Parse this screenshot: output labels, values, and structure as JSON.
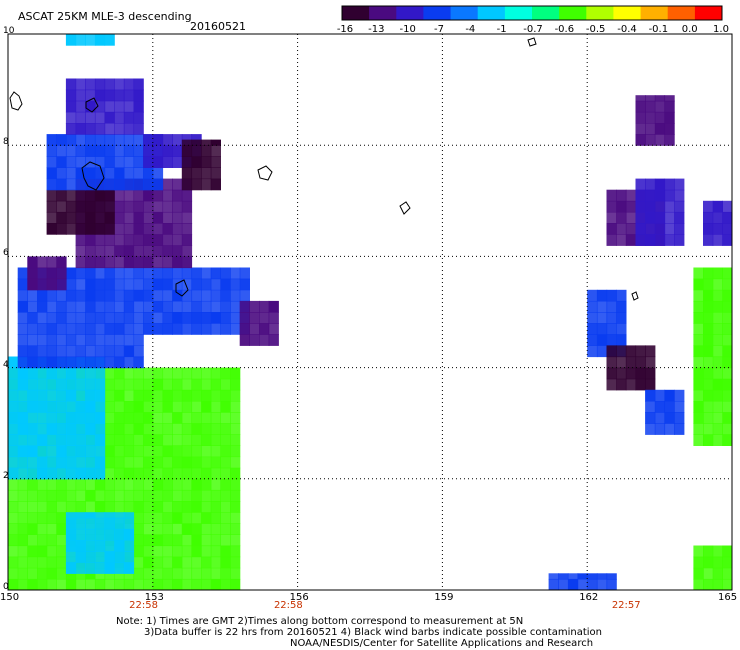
{
  "header": {
    "title": "ASCAT 25KM MLE-3 descending",
    "date": "20160521"
  },
  "colorbar": {
    "labels": [
      "-16",
      "-13",
      "-10",
      "-7",
      "-4",
      "-1",
      "-0.7",
      "-0.6",
      "-0.5",
      "-0.4",
      "-0.1",
      "0.0",
      "1.0"
    ],
    "colors": [
      "#300030",
      "#4a0a80",
      "#3218c8",
      "#0a3cf0",
      "#0a78ff",
      "#00c8ff",
      "#00ffe0",
      "#00ff80",
      "#40ff00",
      "#b0ff00",
      "#ffff00",
      "#ffb000",
      "#ff6000",
      "#ff0000"
    ]
  },
  "axes": {
    "x_ticks": [
      "150",
      "153",
      "156",
      "159",
      "162",
      "165"
    ],
    "y_ticks": [
      "0",
      "2",
      "4",
      "6",
      "8",
      "10"
    ],
    "x_range": [
      150,
      165
    ],
    "y_range": [
      0,
      10
    ]
  },
  "time_ticks": [
    {
      "lon": 152.8,
      "label": "22:58"
    },
    {
      "lon": 155.8,
      "label": "22:58"
    },
    {
      "lon": 162.8,
      "label": "22:57"
    }
  ],
  "notes": {
    "line1": "Note: 1) Times are GMT 2)Times along bottom correspond to measurement at 5N",
    "line2": "3)Data buffer is 22 hrs from 20160521 4) Black wind barbs indicate possible contamination",
    "line3": "NOAA/NESDIS/Center for Satellite Applications and Research"
  },
  "map_data": {
    "type": "heatmap",
    "swaths": [
      {
        "lon": [
          150.0,
          154.8
        ],
        "lat": [
          0.0,
          4.0
        ],
        "level": "-0.5"
      },
      {
        "lon": [
          150.0,
          152.0
        ],
        "lat": [
          2.0,
          4.2
        ],
        "level": "-1"
      },
      {
        "lon": [
          151.2,
          152.6
        ],
        "lat": [
          0.3,
          1.4
        ],
        "level": "-1"
      },
      {
        "lon": [
          150.2,
          152.8
        ],
        "lat": [
          4.0,
          5.8
        ],
        "level": "-7"
      },
      {
        "lon": [
          152.8,
          155.0
        ],
        "lat": [
          4.6,
          5.8
        ],
        "level": "-7"
      },
      {
        "lon": [
          151.4,
          153.8
        ],
        "lat": [
          5.8,
          7.4
        ],
        "level": "-13"
      },
      {
        "lon": [
          150.8,
          152.2
        ],
        "lat": [
          6.4,
          7.2
        ],
        "level": "-16"
      },
      {
        "lon": [
          150.8,
          153.2
        ],
        "lat": [
          7.2,
          8.2
        ],
        "level": "-7"
      },
      {
        "lon": [
          152.8,
          154.0
        ],
        "lat": [
          7.6,
          8.2
        ],
        "level": "-10"
      },
      {
        "lon": [
          151.2,
          152.8
        ],
        "lat": [
          8.2,
          9.2
        ],
        "level": "-10"
      },
      {
        "lon": [
          151.2,
          152.2
        ],
        "lat": [
          9.8,
          10.0
        ],
        "level": "-1"
      },
      {
        "lon": [
          153.6,
          154.4
        ],
        "lat": [
          7.2,
          8.1
        ],
        "level": "-16"
      },
      {
        "lon": [
          154.8,
          155.6
        ],
        "lat": [
          4.4,
          5.2
        ],
        "level": "-13"
      },
      {
        "lon": [
          150.4,
          151.2
        ],
        "lat": [
          5.4,
          6.0
        ],
        "level": "-13"
      },
      {
        "lon": [
          162.0,
          162.8
        ],
        "lat": [
          4.2,
          5.4
        ],
        "level": "-7"
      },
      {
        "lon": [
          162.4,
          163.4
        ],
        "lat": [
          3.6,
          4.4
        ],
        "level": "-16"
      },
      {
        "lon": [
          163.2,
          164.0
        ],
        "lat": [
          2.8,
          3.6
        ],
        "level": "-7"
      },
      {
        "lon": [
          164.2,
          165.0
        ],
        "lat": [
          2.6,
          5.8
        ],
        "level": "-0.5"
      },
      {
        "lon": [
          164.2,
          165.0
        ],
        "lat": [
          0.0,
          0.8
        ],
        "level": "-0.5"
      },
      {
        "lon": [
          161.2,
          162.6
        ],
        "lat": [
          0.0,
          0.3
        ],
        "level": "-7"
      },
      {
        "lon": [
          162.4,
          163.6
        ],
        "lat": [
          6.2,
          7.2
        ],
        "level": "-13"
      },
      {
        "lon": [
          163.0,
          164.0
        ],
        "lat": [
          6.2,
          7.4
        ],
        "level": "-10"
      },
      {
        "lon": [
          164.4,
          165.0
        ],
        "lat": [
          6.2,
          7.0
        ],
        "level": "-10"
      },
      {
        "lon": [
          163.0,
          163.8
        ],
        "lat": [
          8.0,
          8.9
        ],
        "level": "-13"
      }
    ]
  }
}
